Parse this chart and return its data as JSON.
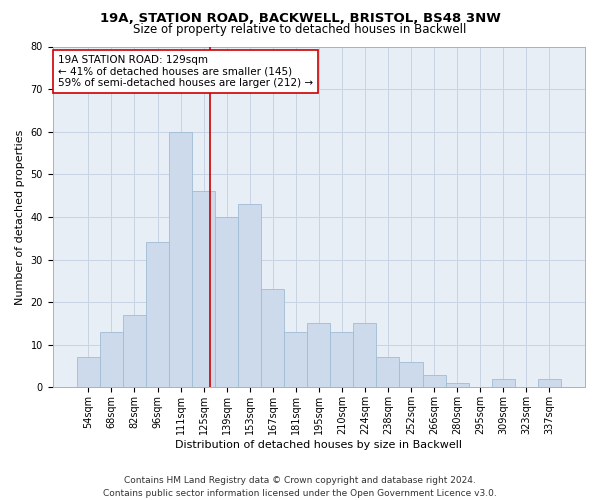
{
  "title_line1": "19A, STATION ROAD, BACKWELL, BRISTOL, BS48 3NW",
  "title_line2": "Size of property relative to detached houses in Backwell",
  "xlabel": "Distribution of detached houses by size in Backwell",
  "ylabel": "Number of detached properties",
  "categories": [
    "54sqm",
    "68sqm",
    "82sqm",
    "96sqm",
    "111sqm",
    "125sqm",
    "139sqm",
    "153sqm",
    "167sqm",
    "181sqm",
    "195sqm",
    "210sqm",
    "224sqm",
    "238sqm",
    "252sqm",
    "266sqm",
    "280sqm",
    "295sqm",
    "309sqm",
    "323sqm",
    "337sqm"
  ],
  "bar_heights": [
    7,
    13,
    17,
    34,
    60,
    46,
    40,
    43,
    23,
    13,
    15,
    13,
    15,
    7,
    6,
    3,
    1,
    0,
    2,
    0,
    2
  ],
  "bar_color": "#ccdaeb",
  "bar_edge_color": "#a0bcd4",
  "bar_width": 1.0,
  "vline_x": 5.29,
  "vline_color": "#cc0000",
  "annotation_line1": "19A STATION ROAD: 129sqm",
  "annotation_line2": "← 41% of detached houses are smaller (145)",
  "annotation_line3": "59% of semi-detached houses are larger (212) →",
  "annotation_box_color": "#ffffff",
  "annotation_box_edge": "#cc0000",
  "ylim": [
    0,
    80
  ],
  "yticks": [
    0,
    10,
    20,
    30,
    40,
    50,
    60,
    70,
    80
  ],
  "grid_color": "#c8d4e4",
  "background_color": "#e8eef6",
  "footer_line1": "Contains HM Land Registry data © Crown copyright and database right 2024.",
  "footer_line2": "Contains public sector information licensed under the Open Government Licence v3.0.",
  "title_fontsize": 9.5,
  "subtitle_fontsize": 8.5,
  "axis_label_fontsize": 8,
  "tick_fontsize": 7,
  "annotation_fontsize": 7.5,
  "footer_fontsize": 6.5
}
